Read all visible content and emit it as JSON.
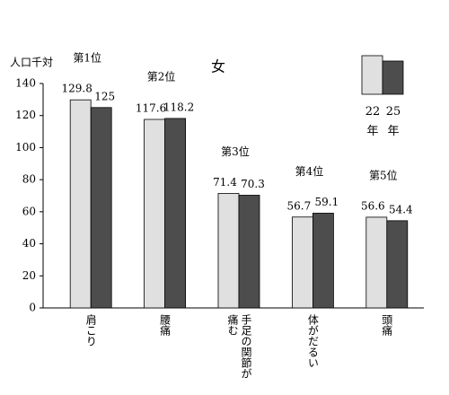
{
  "chart_data": {
    "type": "bar",
    "title": "女",
    "y_label": "人口千対",
    "categories": [
      "肩こり",
      "腰痛",
      "手足の関節が痛む",
      "体がだるい",
      "頭痛"
    ],
    "rank_labels": [
      "第1位",
      "第2位",
      "第3位",
      "第4位",
      "第5位"
    ],
    "series": [
      {
        "name": "22年",
        "color": "#e0e0e0",
        "values": [
          129.8,
          117.6,
          71.4,
          56.7,
          56.6
        ]
      },
      {
        "name": "25年",
        "color": "#4d4d4d",
        "values": [
          125.0,
          118.2,
          70.3,
          59.1,
          54.4
        ]
      }
    ],
    "ylim": [
      0,
      140
    ],
    "yticks": [
      0,
      20,
      40,
      60,
      80,
      100,
      120,
      140
    ]
  }
}
